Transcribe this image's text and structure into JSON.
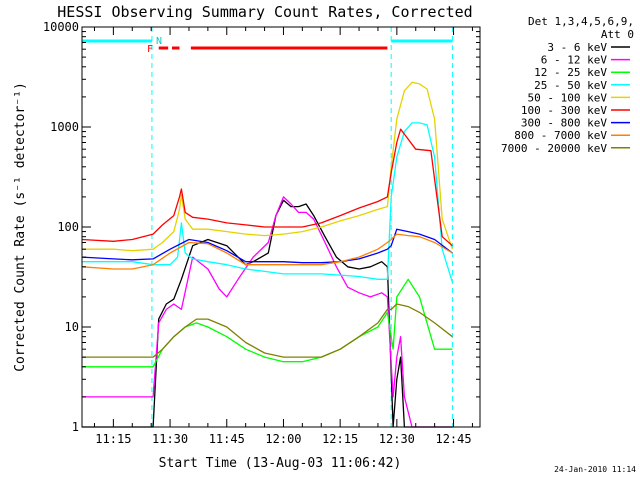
{
  "chart_data": {
    "type": "line",
    "title": "HESSI Observing Summary Count Rates, Corrected",
    "xlabel": "Start Time (13-Aug-03 11:06:42)",
    "ylabel": "Corrected Count Rate (s⁻¹ detector⁻¹)",
    "yscale": "log",
    "ylim": [
      1,
      10000
    ],
    "xlim_minutes": [
      6.7,
      112
    ],
    "x_ticks": [
      {
        "label": "11:15",
        "minute": 15
      },
      {
        "label": "11:30",
        "minute": 30
      },
      {
        "label": "11:45",
        "minute": 45
      },
      {
        "label": "12:00",
        "minute": 60
      },
      {
        "label": "12:15",
        "minute": 75
      },
      {
        "label": "12:30",
        "minute": 90
      },
      {
        "label": "12:45",
        "minute": 105
      }
    ],
    "y_ticks": [
      {
        "label": "1",
        "value": 1
      },
      {
        "label": "10",
        "value": 10
      },
      {
        "label": "100",
        "value": 100
      },
      {
        "label": "1000",
        "value": 1000
      },
      {
        "label": "10000",
        "value": 10000
      }
    ],
    "legend": {
      "header1": "Det 1,3,4,5,6,9,",
      "header2": "Att 0",
      "placement": "right"
    },
    "annotations": {
      "night_flag": "N",
      "flare_flag": "F",
      "timestamp": "24-Jan-2010 11:14"
    },
    "night_intervals": [
      [
        6.7,
        25.2
      ],
      [
        88.5,
        104.7
      ]
    ],
    "flare_intervals": [
      [
        27.0,
        29.5
      ],
      [
        30.5,
        32.5
      ],
      [
        35.5,
        87.5
      ]
    ],
    "series": [
      {
        "name": "3 - 6 keV",
        "color": "#000000",
        "x": [
          6.7,
          20,
          25.5,
          27,
          29,
          31,
          33,
          36,
          40,
          45,
          50,
          52,
          56,
          58,
          60,
          62,
          64,
          66,
          68,
          71,
          74,
          77,
          80,
          83,
          86,
          87.5,
          89,
          90,
          91,
          92,
          94,
          97,
          100,
          103,
          104.7
        ],
        "y": [
          1,
          1,
          1,
          12,
          17,
          19,
          30,
          65,
          75,
          65,
          42,
          45,
          55,
          130,
          185,
          160,
          160,
          170,
          130,
          80,
          50,
          40,
          38,
          40,
          45,
          40,
          1,
          3,
          5,
          1,
          1,
          1,
          1,
          1,
          1
        ]
      },
      {
        "name": "6 - 12 keV",
        "color": "#ff00ff",
        "x": [
          6.7,
          20,
          24,
          25.5,
          27,
          29,
          31,
          33,
          36,
          40,
          43,
          45,
          48,
          52,
          56,
          58,
          60,
          62,
          64,
          66,
          68,
          71,
          74,
          77,
          80,
          83,
          86,
          87.5,
          89,
          90,
          91,
          92,
          94,
          100,
          104.7
        ],
        "y": [
          2,
          2,
          2,
          2,
          11,
          15,
          17,
          15,
          50,
          38,
          24,
          20,
          30,
          50,
          70,
          130,
          200,
          170,
          140,
          140,
          120,
          70,
          40,
          25,
          22,
          20,
          22,
          20,
          2,
          5,
          8,
          2,
          1,
          1,
          1
        ]
      },
      {
        "name": "12 - 25 keV",
        "color": "#00ff00",
        "x": [
          6.7,
          15,
          20,
          25.5,
          28,
          31,
          34,
          37,
          40,
          45,
          50,
          55,
          60,
          65,
          70,
          75,
          80,
          85,
          87.5,
          89,
          90,
          93,
          96,
          100,
          104.7
        ],
        "y": [
          4,
          4,
          4,
          4,
          6,
          8,
          10,
          11,
          10,
          8,
          6,
          5,
          4.5,
          4.5,
          5,
          6,
          8,
          10,
          14,
          6,
          20,
          30,
          20,
          6,
          6
        ]
      },
      {
        "name": "25 - 50 keV",
        "color": "#00ffff",
        "x": [
          6.7,
          20,
          25.5,
          27,
          30,
          32,
          33,
          34,
          36,
          40,
          45,
          50,
          55,
          60,
          65,
          70,
          75,
          80,
          85,
          87.5,
          88.5,
          90,
          92,
          94,
          96,
          98,
          100,
          102,
          104.7
        ],
        "y": [
          45,
          45,
          42,
          42,
          42,
          50,
          110,
          55,
          48,
          45,
          42,
          38,
          36,
          34,
          34,
          34,
          33,
          32,
          30,
          30,
          200,
          500,
          900,
          1100,
          1100,
          1050,
          500,
          60,
          28
        ]
      },
      {
        "name": "50 - 100 keV",
        "color": "#e6d200",
        "x": [
          6.7,
          15,
          20,
          25.5,
          28,
          31,
          32.5,
          33,
          34,
          36,
          40,
          45,
          50,
          55,
          60,
          65,
          70,
          75,
          80,
          85,
          87.5,
          88.5,
          90,
          92,
          94,
          96,
          98,
          100,
          102,
          104.7
        ],
        "y": [
          60,
          60,
          58,
          60,
          70,
          90,
          150,
          210,
          120,
          95,
          95,
          90,
          85,
          82,
          85,
          90,
          100,
          115,
          130,
          150,
          160,
          400,
          1200,
          2300,
          2800,
          2700,
          2400,
          1200,
          120,
          60
        ]
      },
      {
        "name": "100 - 300 keV",
        "color": "#ff0000",
        "x": [
          6.7,
          15,
          20,
          25.5,
          28,
          31,
          32.5,
          33,
          34,
          36,
          40,
          45,
          50,
          55,
          60,
          65,
          70,
          75,
          80,
          85,
          87.5,
          88.5,
          90,
          91,
          92,
          95,
          99,
          100,
          102,
          104.7
        ],
        "y": [
          75,
          72,
          75,
          85,
          105,
          130,
          200,
          240,
          140,
          125,
          120,
          110,
          105,
          100,
          100,
          100,
          110,
          130,
          155,
          180,
          200,
          350,
          700,
          950,
          850,
          600,
          580,
          300,
          80,
          65
        ]
      },
      {
        "name": "300 - 800 keV",
        "color": "#0000ff",
        "x": [
          6.7,
          15,
          20,
          25.5,
          30,
          35,
          40,
          45,
          50,
          55,
          60,
          65,
          70,
          75,
          80,
          85,
          87.5,
          88.5,
          90,
          93,
          96,
          100,
          104.7
        ],
        "y": [
          50,
          48,
          47,
          48,
          60,
          75,
          70,
          58,
          45,
          45,
          45,
          44,
          44,
          45,
          48,
          55,
          60,
          65,
          95,
          90,
          85,
          75,
          55
        ]
      },
      {
        "name": "800 - 7000 keV",
        "color": "#ff8000",
        "x": [
          6.7,
          15,
          20,
          25.5,
          30,
          35,
          40,
          45,
          50,
          55,
          60,
          65,
          70,
          75,
          80,
          85,
          87.5,
          88.5,
          90,
          93,
          96,
          100,
          104.7
        ],
        "y": [
          40,
          38,
          38,
          42,
          55,
          70,
          68,
          55,
          42,
          42,
          42,
          42,
          42,
          45,
          50,
          60,
          70,
          75,
          85,
          82,
          80,
          70,
          55
        ]
      },
      {
        "name": "7000 - 20000 keV",
        "color": "#808000",
        "x": [
          6.7,
          15,
          20,
          25.5,
          28,
          31,
          34,
          37,
          40,
          45,
          50,
          55,
          60,
          65,
          70,
          75,
          80,
          85,
          87.5,
          88.5,
          90,
          93,
          96,
          100,
          104.7
        ],
        "y": [
          5,
          5,
          5,
          5,
          6,
          8,
          10,
          12,
          12,
          10,
          7,
          5.5,
          5,
          5,
          5,
          6,
          8,
          11,
          15,
          15,
          17,
          16,
          14,
          11,
          8
        ]
      }
    ]
  }
}
